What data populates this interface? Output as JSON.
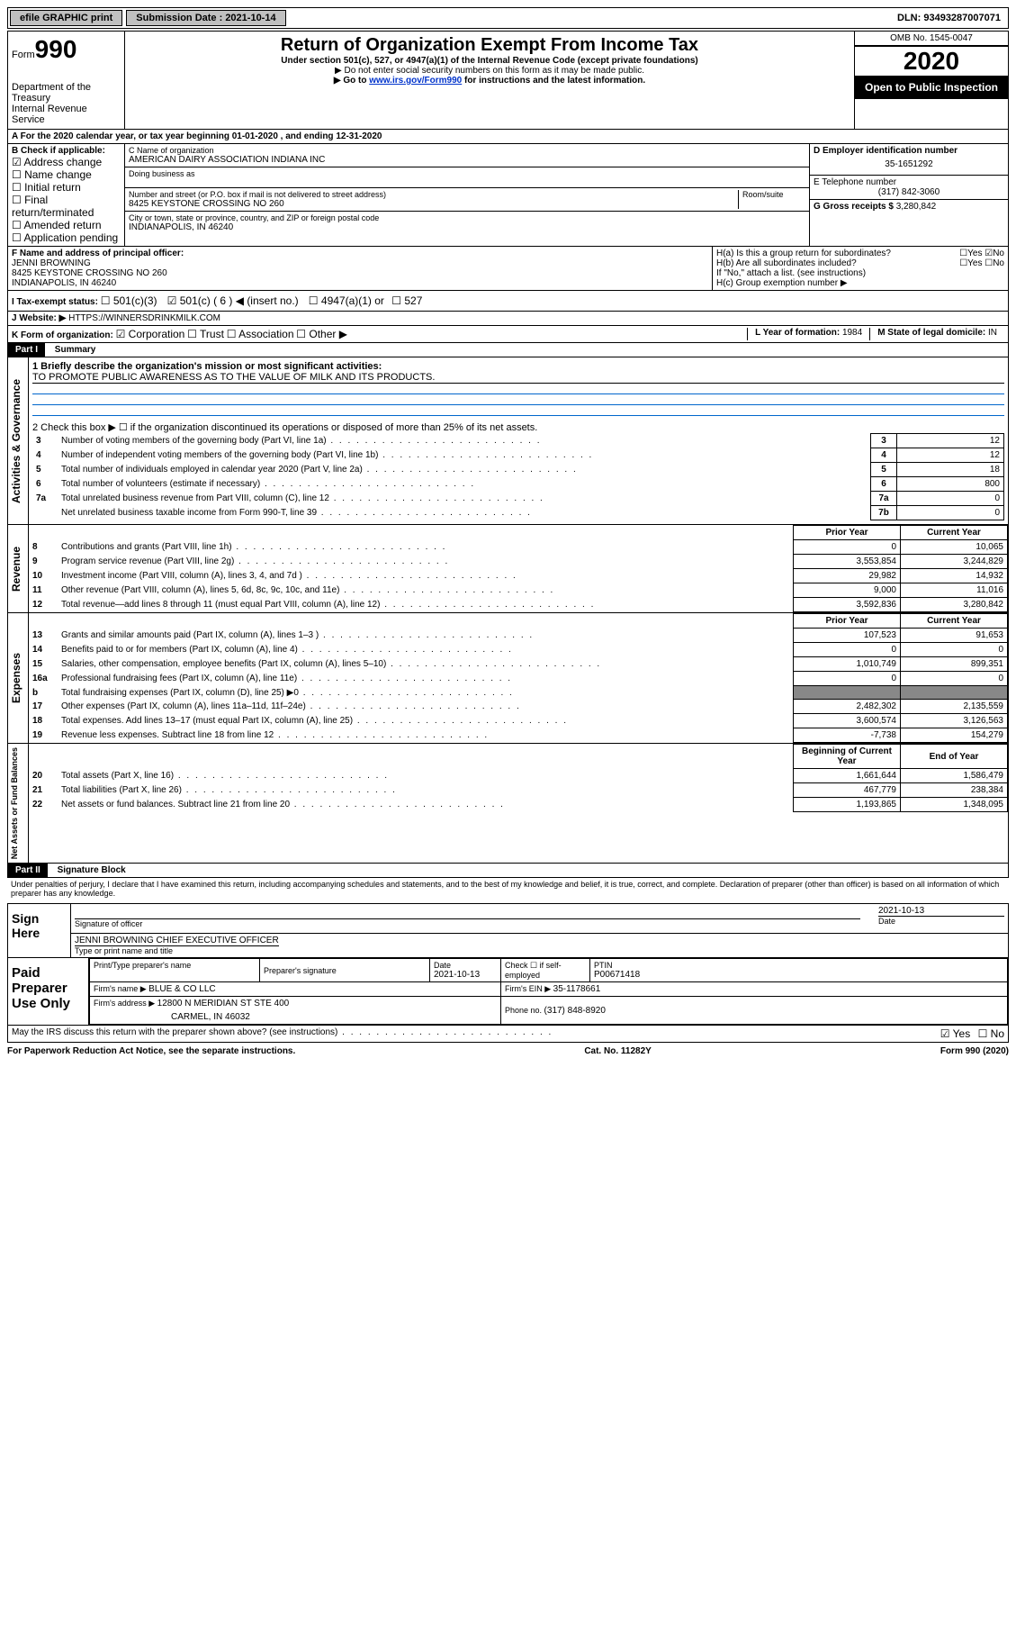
{
  "topbar": {
    "efile": "efile GRAPHIC print",
    "submission_label": "Submission Date : 2021-10-14",
    "dln_label": "DLN: 93493287007071"
  },
  "header": {
    "form_label": "Form",
    "form_number": "990",
    "dept": "Department of the Treasury",
    "irs": "Internal Revenue Service",
    "title": "Return of Organization Exempt From Income Tax",
    "subtitle": "Under section 501(c), 527, or 4947(a)(1) of the Internal Revenue Code (except private foundations)",
    "note1": "▶ Do not enter social security numbers on this form as it may be made public.",
    "note2_pre": "▶ Go to ",
    "note2_link": "www.irs.gov/Form990",
    "note2_post": " for instructions and the latest information.",
    "omb": "OMB No. 1545-0047",
    "year": "2020",
    "open_public": "Open to Public Inspection"
  },
  "a_line": "A For the 2020 calendar year, or tax year beginning 01-01-2020   , and ending 12-31-2020",
  "b": {
    "label": "B Check if applicable:",
    "addr_change": "Address change",
    "name_change": "Name change",
    "initial": "Initial return",
    "final": "Final return/terminated",
    "amended": "Amended return",
    "app_pending": "Application pending"
  },
  "c": {
    "name_label": "C Name of organization",
    "name": "AMERICAN DAIRY ASSOCIATION INDIANA INC",
    "dba_label": "Doing business as",
    "dba": "",
    "street_label": "Number and street (or P.O. box if mail is not delivered to street address)",
    "room_label": "Room/suite",
    "street": "8425 KEYSTONE CROSSING NO 260",
    "city_label": "City or town, state or province, country, and ZIP or foreign postal code",
    "city": "INDIANAPOLIS, IN  46240"
  },
  "d": {
    "label": "D Employer identification number",
    "ein": "35-1651292"
  },
  "e": {
    "label": "E Telephone number",
    "phone": "(317) 842-3060"
  },
  "g": {
    "label": "G Gross receipts $ ",
    "amount": "3,280,842"
  },
  "f": {
    "label": "F Name and address of principal officer:",
    "name": "JENNI BROWNING",
    "street": "8425 KEYSTONE CROSSING NO 260",
    "city": "INDIANAPOLIS, IN  46240"
  },
  "h": {
    "a_label": "H(a)  Is this a group return for subordinates?",
    "a_val": "No",
    "b_label": "H(b)  Are all subordinates included?",
    "c_label": "H(c)  Group exemption number ▶",
    "note": "If \"No,\" attach a list. (see instructions)"
  },
  "i": {
    "label": "I  Tax-exempt status:",
    "opt1": "501(c)(3)",
    "opt2": "501(c) ( 6 ) ◀ (insert no.)",
    "opt3": "4947(a)(1) or",
    "opt4": "527"
  },
  "j": {
    "label": "J  Website: ▶",
    "url": "HTTPS://WINNERSDRINKMILK.COM"
  },
  "k": {
    "label": "K Form of organization:",
    "corp": "Corporation",
    "trust": "Trust",
    "assoc": "Association",
    "other": "Other ▶"
  },
  "l": {
    "label": "L Year of formation: ",
    "val": "1984"
  },
  "m": {
    "label": "M State of legal domicile: ",
    "val": "IN"
  },
  "part1": {
    "header": "Part I",
    "title": "Summary",
    "q1_label": "1  Briefly describe the organization's mission or most significant activities:",
    "q1_val": "TO PROMOTE PUBLIC AWARENESS AS TO THE VALUE OF MILK AND ITS PRODUCTS.",
    "q2": "2  Check this box ▶ ☐  if the organization discontinued its operations or disposed of more than 25% of its net assets."
  },
  "gov_rows": [
    {
      "n": "3",
      "label": "Number of voting members of the governing body (Part VI, line 1a)",
      "box": "3",
      "val": "12"
    },
    {
      "n": "4",
      "label": "Number of independent voting members of the governing body (Part VI, line 1b)",
      "box": "4",
      "val": "12"
    },
    {
      "n": "5",
      "label": "Total number of individuals employed in calendar year 2020 (Part V, line 2a)",
      "box": "5",
      "val": "18"
    },
    {
      "n": "6",
      "label": "Total number of volunteers (estimate if necessary)",
      "box": "6",
      "val": "800"
    },
    {
      "n": "7a",
      "label": "Total unrelated business revenue from Part VIII, column (C), line 12",
      "box": "7a",
      "val": "0"
    },
    {
      "n": "",
      "label": "Net unrelated business taxable income from Form 990-T, line 39",
      "box": "7b",
      "val": "0"
    }
  ],
  "rev_head": {
    "prior": "Prior Year",
    "curr": "Current Year"
  },
  "rev_rows": [
    {
      "n": "8",
      "label": "Contributions and grants (Part VIII, line 1h)",
      "prior": "0",
      "curr": "10,065"
    },
    {
      "n": "9",
      "label": "Program service revenue (Part VIII, line 2g)",
      "prior": "3,553,854",
      "curr": "3,244,829"
    },
    {
      "n": "10",
      "label": "Investment income (Part VIII, column (A), lines 3, 4, and 7d )",
      "prior": "29,982",
      "curr": "14,932"
    },
    {
      "n": "11",
      "label": "Other revenue (Part VIII, column (A), lines 5, 6d, 8c, 9c, 10c, and 11e)",
      "prior": "9,000",
      "curr": "11,016"
    },
    {
      "n": "12",
      "label": "Total revenue—add lines 8 through 11 (must equal Part VIII, column (A), line 12)",
      "prior": "3,592,836",
      "curr": "3,280,842"
    }
  ],
  "exp_rows": [
    {
      "n": "13",
      "label": "Grants and similar amounts paid (Part IX, column (A), lines 1–3 )",
      "prior": "107,523",
      "curr": "91,653"
    },
    {
      "n": "14",
      "label": "Benefits paid to or for members (Part IX, column (A), line 4)",
      "prior": "0",
      "curr": "0"
    },
    {
      "n": "15",
      "label": "Salaries, other compensation, employee benefits (Part IX, column (A), lines 5–10)",
      "prior": "1,010,749",
      "curr": "899,351"
    },
    {
      "n": "16a",
      "label": "Professional fundraising fees (Part IX, column (A), line 11e)",
      "prior": "0",
      "curr": "0"
    },
    {
      "n": "b",
      "label": "Total fundraising expenses (Part IX, column (D), line 25) ▶0",
      "prior": "",
      "curr": "",
      "shaded": true
    },
    {
      "n": "17",
      "label": "Other expenses (Part IX, column (A), lines 11a–11d, 11f–24e)",
      "prior": "2,482,302",
      "curr": "2,135,559"
    },
    {
      "n": "18",
      "label": "Total expenses. Add lines 13–17 (must equal Part IX, column (A), line 25)",
      "prior": "3,600,574",
      "curr": "3,126,563"
    },
    {
      "n": "19",
      "label": "Revenue less expenses. Subtract line 18 from line 12",
      "prior": "-7,738",
      "curr": "154,279"
    }
  ],
  "net_head": {
    "prior": "Beginning of Current Year",
    "curr": "End of Year"
  },
  "net_rows": [
    {
      "n": "20",
      "label": "Total assets (Part X, line 16)",
      "prior": "1,661,644",
      "curr": "1,586,479"
    },
    {
      "n": "21",
      "label": "Total liabilities (Part X, line 26)",
      "prior": "467,779",
      "curr": "238,384"
    },
    {
      "n": "22",
      "label": "Net assets or fund balances. Subtract line 21 from line 20",
      "prior": "1,193,865",
      "curr": "1,348,095"
    }
  ],
  "vlabels": {
    "gov": "Activities & Governance",
    "rev": "Revenue",
    "exp": "Expenses",
    "net": "Net Assets or Fund Balances"
  },
  "part2": {
    "header": "Part II",
    "title": "Signature Block",
    "perjury": "Under penalties of perjury, I declare that I have examined this return, including accompanying schedules and statements, and to the best of my knowledge and belief, it is true, correct, and complete. Declaration of preparer (other than officer) is based on all information of which preparer has any knowledge."
  },
  "sign": {
    "label": "Sign Here",
    "sig_label": "Signature of officer",
    "date_label": "Date",
    "date": "2021-10-13",
    "name": "JENNI BROWNING CHIEF EXECUTIVE OFFICER",
    "name_label": "Type or print name and title"
  },
  "prep": {
    "label": "Paid Preparer Use Only",
    "h1": "Print/Type preparer's name",
    "h2": "Preparer's signature",
    "h3": "Date",
    "h3v": "2021-10-13",
    "h4": "Check ☐ if self-employed",
    "h5": "PTIN",
    "h5v": "P00671418",
    "firm_label": "Firm's name    ▶ ",
    "firm": "BLUE & CO LLC",
    "ein_label": "Firm's EIN ▶ ",
    "ein": "35-1178661",
    "addr_label": "Firm's address ▶ ",
    "addr1": "12800 N MERIDIAN ST STE 400",
    "addr2": "CARMEL, IN  46032",
    "phone_label": "Phone no. ",
    "phone": "(317) 848-8920"
  },
  "discuss": {
    "label": "May the IRS discuss this return with the preparer shown above? (see instructions)",
    "yes": "Yes",
    "no": "No"
  },
  "footer": {
    "left": "For Paperwork Reduction Act Notice, see the separate instructions.",
    "mid": "Cat. No. 11282Y",
    "right": "Form 990 (2020)"
  }
}
